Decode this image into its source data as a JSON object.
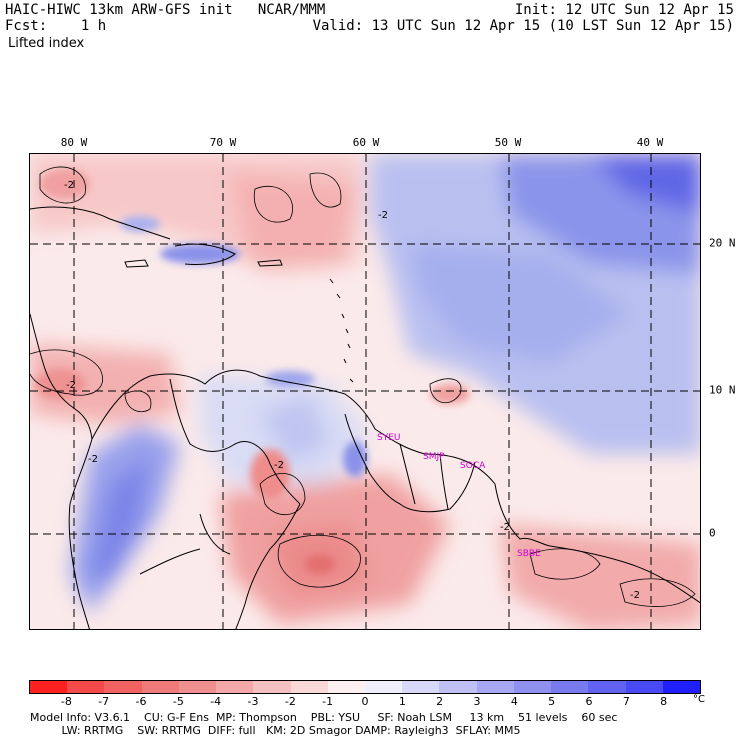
{
  "header": {
    "title_left": "HAIC-HIWC 13km ARW-GFS init   NCAR/MMM",
    "fcst": "Fcst:    1 h",
    "field": "Lifted index",
    "init": "Init: 12 UTC Sun 12 Apr 15",
    "valid": "Valid: 13 UTC Sun 12 Apr 15 (10 LST Sun 12 Apr 15)"
  },
  "map": {
    "lon_labels": [
      "80 W",
      "70 W",
      "60 W",
      "50 W",
      "40 W"
    ],
    "lat_labels": [
      "20 N",
      "10 N",
      "0"
    ],
    "contour_labels": [
      "-2",
      "-2",
      "-2",
      "-2",
      "-2",
      "-2",
      "-2"
    ],
    "stations": [
      "SYEU",
      "SMJP",
      "SOCA",
      "SBBE"
    ]
  },
  "colorbar": {
    "ticks": [
      "-8",
      "-7",
      "-6",
      "-5",
      "-4",
      "-3",
      "-2",
      "-1",
      "0",
      "1",
      "2",
      "3",
      "4",
      "5",
      "6",
      "7",
      "8"
    ],
    "unit": "°C",
    "colors": [
      "#ff2020",
      "#f54a4a",
      "#f26262",
      "#ef7a7a",
      "#ef9090",
      "#f2a8a8",
      "#f5c0c0",
      "#f9d8d8",
      "#fdf0f0",
      "#f0f0fd",
      "#d8d8f9",
      "#c0c0f5",
      "#a8a8f2",
      "#9090ef",
      "#7a7aef",
      "#6262f2",
      "#4a4af5",
      "#2020ff"
    ]
  },
  "footer": {
    "line1": "Model Info: V3.6.1    CU: G-F Ens  MP: Thompson    PBL: YSU     SF: Noah LSM     13 km    51 levels    60 sec",
    "line2": "         LW: RRTMG    SW: RRTMG  DIFF: full   KM: 2D Smagor DAMP: Rayleigh3  SFLAY: MM5"
  }
}
